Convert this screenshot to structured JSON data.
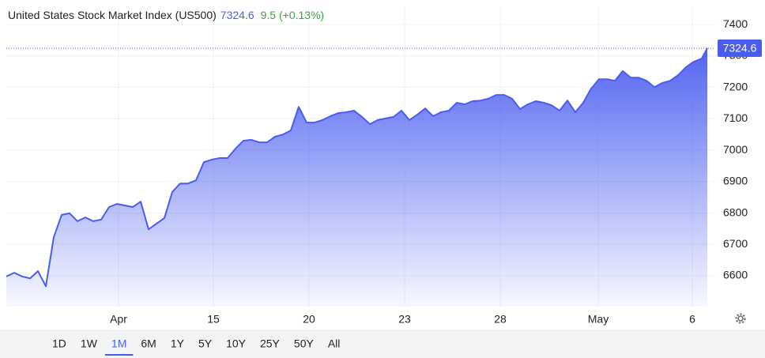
{
  "chart_data": {
    "type": "area",
    "title": "United States Stock Market Index (US500)",
    "last_price": 7324.6,
    "change": "9.5 (+0.13%)",
    "color": "#4a5cf0",
    "grid": true,
    "x": [
      0,
      1,
      2,
      3,
      4,
      5,
      6,
      7,
      8,
      9,
      10,
      11,
      12,
      13,
      14,
      15,
      16,
      17,
      18,
      19,
      20,
      21,
      22,
      23,
      24,
      25,
      26,
      27,
      28,
      29,
      30,
      31,
      32,
      33,
      34,
      35,
      36,
      37,
      38,
      39,
      40,
      41,
      42,
      43,
      44,
      45,
      46,
      47,
      48,
      49,
      50,
      51,
      52,
      53,
      54,
      55,
      56,
      57,
      58,
      59,
      60,
      61,
      62,
      63,
      64,
      65,
      66,
      67,
      68,
      69,
      70,
      71,
      72,
      73,
      74,
      75,
      76,
      77,
      78,
      79,
      80,
      81,
      82,
      83,
      84,
      85,
      86,
      87,
      88,
      88.7
    ],
    "values": [
      6598,
      6610,
      6598,
      6592,
      6615,
      6567,
      6723,
      6794,
      6799,
      6774,
      6786,
      6774,
      6779,
      6819,
      6829,
      6824,
      6819,
      6836,
      6748,
      6766,
      6784,
      6867,
      6894,
      6894,
      6904,
      6962,
      6970,
      6975,
      6975,
      7005,
      7030,
      7033,
      7025,
      7025,
      7043,
      7050,
      7063,
      7138,
      7088,
      7088,
      7096,
      7108,
      7118,
      7121,
      7126,
      7106,
      7083,
      7096,
      7101,
      7106,
      7126,
      7096,
      7113,
      7133,
      7108,
      7121,
      7126,
      7151,
      7146,
      7156,
      7158,
      7164,
      7176,
      7176,
      7164,
      7131,
      7146,
      7156,
      7151,
      7143,
      7126,
      7158,
      7121,
      7151,
      7196,
      7226,
      7226,
      7221,
      7252,
      7231,
      7231,
      7221,
      7201,
      7214,
      7221,
      7239,
      7264,
      7282,
      7292,
      7324.6
    ],
    "xlim": [
      0,
      89.7
    ],
    "xticks": [
      {
        "value": 14.2,
        "label": "Apr"
      },
      {
        "value": 26.2,
        "label": "15"
      },
      {
        "value": 38.3,
        "label": "20"
      },
      {
        "value": 50.4,
        "label": "23"
      },
      {
        "value": 62.5,
        "label": "28"
      },
      {
        "value": 74.9,
        "label": "May"
      },
      {
        "value": 86.8,
        "label": "6"
      }
    ],
    "ylim": [
      6502,
      7458
    ],
    "yticks": [
      6600,
      6700,
      6800,
      6900,
      7000,
      7100,
      7200,
      7300,
      7400
    ]
  },
  "range_buttons": [
    "1D",
    "1W",
    "1M",
    "6M",
    "1Y",
    "5Y",
    "10Y",
    "25Y",
    "50Y",
    "All"
  ],
  "selected_range": "1M"
}
